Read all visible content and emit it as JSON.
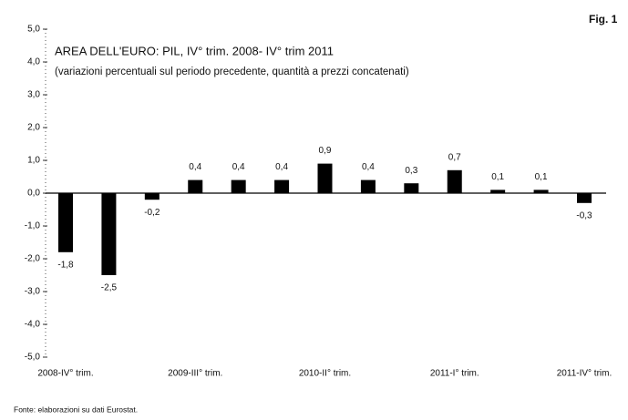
{
  "chart_data": {
    "type": "bar",
    "figure_label": "Fig. 1",
    "title": "AREA DELL'EURO: PIL, IV° trim. 2008- IV° trim 2011",
    "subtitle": "(variazioni percentuali sul periodo precedente, quantità a prezzi concatenati)",
    "source": "Fonte: elaborazioni su dati Eurostat.",
    "categories": [
      "2008-IV° trim.",
      null,
      null,
      "2009-III° trim.",
      null,
      null,
      "2010-II° trim.",
      null,
      null,
      "2011-I° trim.",
      null,
      null,
      "2011-IV° trim."
    ],
    "values": [
      -1.8,
      -2.5,
      -0.2,
      0.4,
      0.4,
      0.4,
      0.9,
      0.4,
      0.3,
      0.7,
      0.1,
      0.1,
      -0.3
    ],
    "value_labels": [
      "-1,8",
      "-2,5",
      "-0,2",
      "0,4",
      "0,4",
      "0,4",
      "0,9",
      "0,4",
      "0,3",
      "0,7",
      "0,1",
      "0,1",
      "-0,3"
    ],
    "color": "#000000",
    "ylim": [
      -5,
      5
    ],
    "yticks": [
      {
        "value": 5,
        "label": "5,0"
      },
      {
        "value": 4,
        "label": "4,0"
      },
      {
        "value": 3,
        "label": "3,0"
      },
      {
        "value": 2,
        "label": "2,0"
      },
      {
        "value": 1,
        "label": "1,0"
      },
      {
        "value": 0,
        "label": "0,0"
      },
      {
        "value": -1,
        "label": "-1,0"
      },
      {
        "value": -2,
        "label": "-2,0"
      },
      {
        "value": -3,
        "label": "-3,0"
      },
      {
        "value": -4,
        "label": "-4,0"
      },
      {
        "value": -5,
        "label": "-5,0"
      }
    ]
  }
}
